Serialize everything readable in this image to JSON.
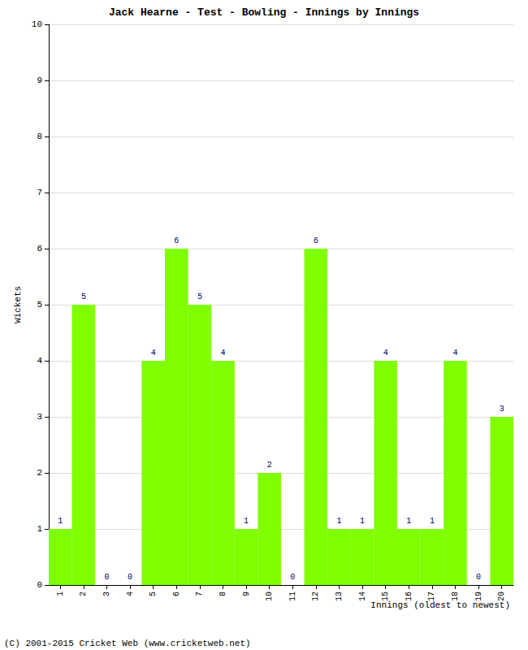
{
  "chart_data": {
    "type": "bar",
    "title": "Jack Hearne - Test - Bowling - Innings by Innings",
    "x_label": "Innings (oldest to newest)",
    "y_label": "Wickets",
    "annotations": [
      "(C) 2001-2015 Cricket Web (www.cricketweb.net)"
    ],
    "categories": [
      "1",
      "2",
      "3",
      "4",
      "5",
      "6",
      "7",
      "8",
      "9",
      "10",
      "11",
      "12",
      "13",
      "14",
      "15",
      "16",
      "17",
      "18",
      "19",
      "20"
    ],
    "values": [
      1,
      5,
      0,
      0,
      4,
      6,
      5,
      4,
      1,
      2,
      0,
      6,
      1,
      1,
      4,
      1,
      1,
      4,
      0,
      3
    ],
    "color": "#7fff00",
    "ylim": [
      0,
      10
    ],
    "yticks": [
      0,
      1,
      2,
      3,
      4,
      5,
      6,
      7,
      8,
      9,
      10
    ],
    "grid": true,
    "data_labels": true
  }
}
